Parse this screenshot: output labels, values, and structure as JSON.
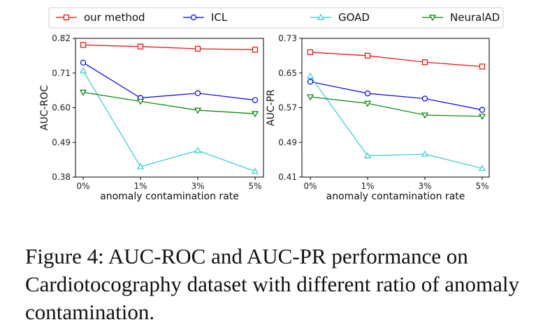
{
  "caption": "Figure 4: AUC-ROC and AUC-PR performance on Cardiotocography dataset with different ratio of anomaly contamination.",
  "legend": {
    "placement": "top",
    "entries": [
      {
        "name": "our method",
        "color": "#ff0000",
        "marker": "square"
      },
      {
        "name": "ICL",
        "color": "#0000ff",
        "marker": "circle"
      },
      {
        "name": "GOAD",
        "color": "#2ecfcf",
        "marker": "triangle-up"
      },
      {
        "name": "NeuralAD",
        "color": "#008000",
        "marker": "triangle-down"
      }
    ]
  },
  "chart_data": [
    {
      "type": "line",
      "xlabel": "anomaly contamination rate",
      "ylabel": "AUC-ROC",
      "categories": [
        "0%",
        "1%",
        "3%",
        "5%"
      ],
      "ylim": [
        0.38,
        0.82
      ],
      "yticks": [
        "0.38",
        "0.49",
        "0.60",
        "0.71",
        "0.82"
      ],
      "grid": false,
      "series": [
        {
          "name": "our method",
          "values": [
            0.799,
            0.794,
            0.787,
            0.784
          ]
        },
        {
          "name": "ICL",
          "values": [
            0.743,
            0.631,
            0.646,
            0.624
          ]
        },
        {
          "name": "GOAD",
          "values": [
            0.717,
            0.413,
            0.464,
            0.398
          ]
        },
        {
          "name": "NeuralAD",
          "values": [
            0.649,
            0.62,
            0.592,
            0.581
          ]
        }
      ]
    },
    {
      "type": "line",
      "xlabel": "anomaly contamination rate",
      "ylabel": "AUC-PR",
      "categories": [
        "0%",
        "1%",
        "3%",
        "5%"
      ],
      "ylim": [
        0.41,
        0.73
      ],
      "yticks": [
        "0.41",
        "0.49",
        "0.57",
        "0.65",
        "0.73"
      ],
      "grid": false,
      "series": [
        {
          "name": "our method",
          "values": [
            0.698,
            0.69,
            0.675,
            0.665
          ]
        },
        {
          "name": "ICL",
          "values": [
            0.63,
            0.603,
            0.591,
            0.565
          ]
        },
        {
          "name": "GOAD",
          "values": [
            0.643,
            0.459,
            0.463,
            0.43
          ]
        },
        {
          "name": "NeuralAD",
          "values": [
            0.595,
            0.58,
            0.553,
            0.55
          ]
        }
      ]
    }
  ]
}
